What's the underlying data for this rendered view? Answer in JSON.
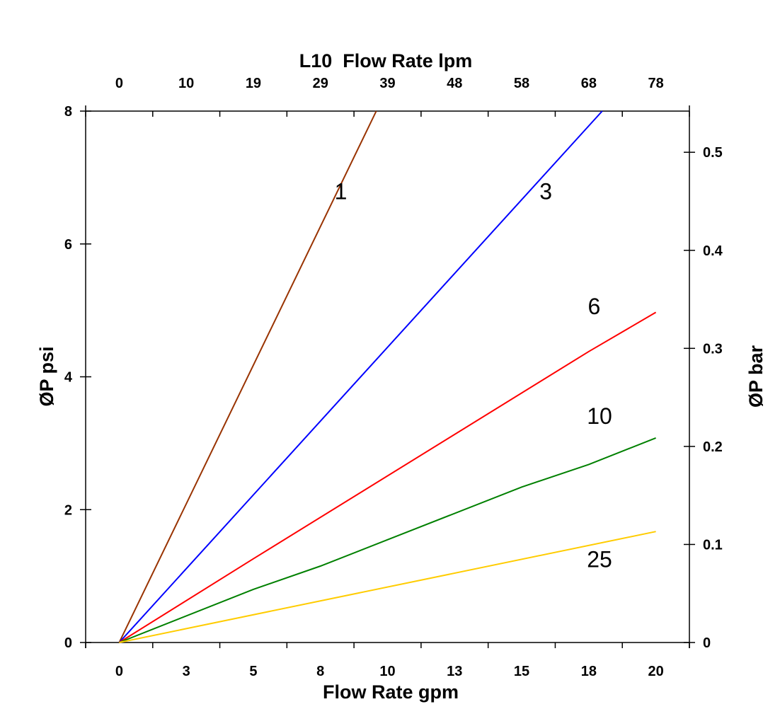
{
  "chart_data": {
    "type": "line",
    "title": "",
    "xlabel": "Flow Rate gpm",
    "x2label": "L10  Flow Rate lpm",
    "ylabel": "ØP psi",
    "y2label": "ØP bar",
    "xlim": [
      -1.25,
      21.25
    ],
    "ylim": [
      0,
      8
    ],
    "y2lim": [
      0,
      0.542
    ],
    "x_tick_values": [
      0,
      2.5,
      5,
      7.5,
      10,
      12.5,
      15,
      17.5,
      20
    ],
    "x_tick_labels": [
      "0",
      "3",
      "5",
      "8",
      "10",
      "13",
      "15",
      "18",
      "20"
    ],
    "x2_tick_labels": [
      "0",
      "10",
      "19",
      "29",
      "39",
      "48",
      "58",
      "68",
      "78"
    ],
    "y_ticks": [
      0,
      2,
      4,
      6,
      8
    ],
    "y_tick_labels": [
      "0",
      "2",
      "4",
      "6",
      "8"
    ],
    "y2_ticks": [
      0,
      0.1,
      0.2,
      0.3,
      0.4,
      0.5
    ],
    "y2_tick_labels": [
      "0",
      "0.1",
      "0.2",
      "0.3",
      "0.4",
      "0.5"
    ],
    "grid": false,
    "legend": "none",
    "series": [
      {
        "name": "1",
        "color": "#993300",
        "points": [
          [
            0,
            0
          ],
          [
            9.58,
            8
          ]
        ],
        "label_at": [
          8.26,
          6.8
        ]
      },
      {
        "name": "3",
        "color": "#0000ff",
        "points": [
          [
            0,
            0
          ],
          [
            18.0,
            8
          ]
        ],
        "label_at": [
          15.9,
          6.8
        ]
      },
      {
        "name": "6",
        "color": "#ff0000",
        "points": [
          [
            0,
            0
          ],
          [
            5,
            1.26
          ],
          [
            17.5,
            4.38
          ],
          [
            20,
            4.97
          ]
        ],
        "label_at": [
          17.7,
          5.07
        ]
      },
      {
        "name": "10",
        "color": "#008000",
        "points": [
          [
            0,
            0
          ],
          [
            5,
            0.8
          ],
          [
            7.5,
            1.15
          ],
          [
            15,
            2.34
          ],
          [
            17.5,
            2.68
          ],
          [
            20,
            3.08
          ]
        ],
        "label_at": [
          17.9,
          3.42
        ]
      },
      {
        "name": "25",
        "color": "#ffcc00",
        "points": [
          [
            0,
            0
          ],
          [
            20,
            1.67
          ]
        ],
        "label_at": [
          17.9,
          1.26
        ]
      }
    ]
  }
}
